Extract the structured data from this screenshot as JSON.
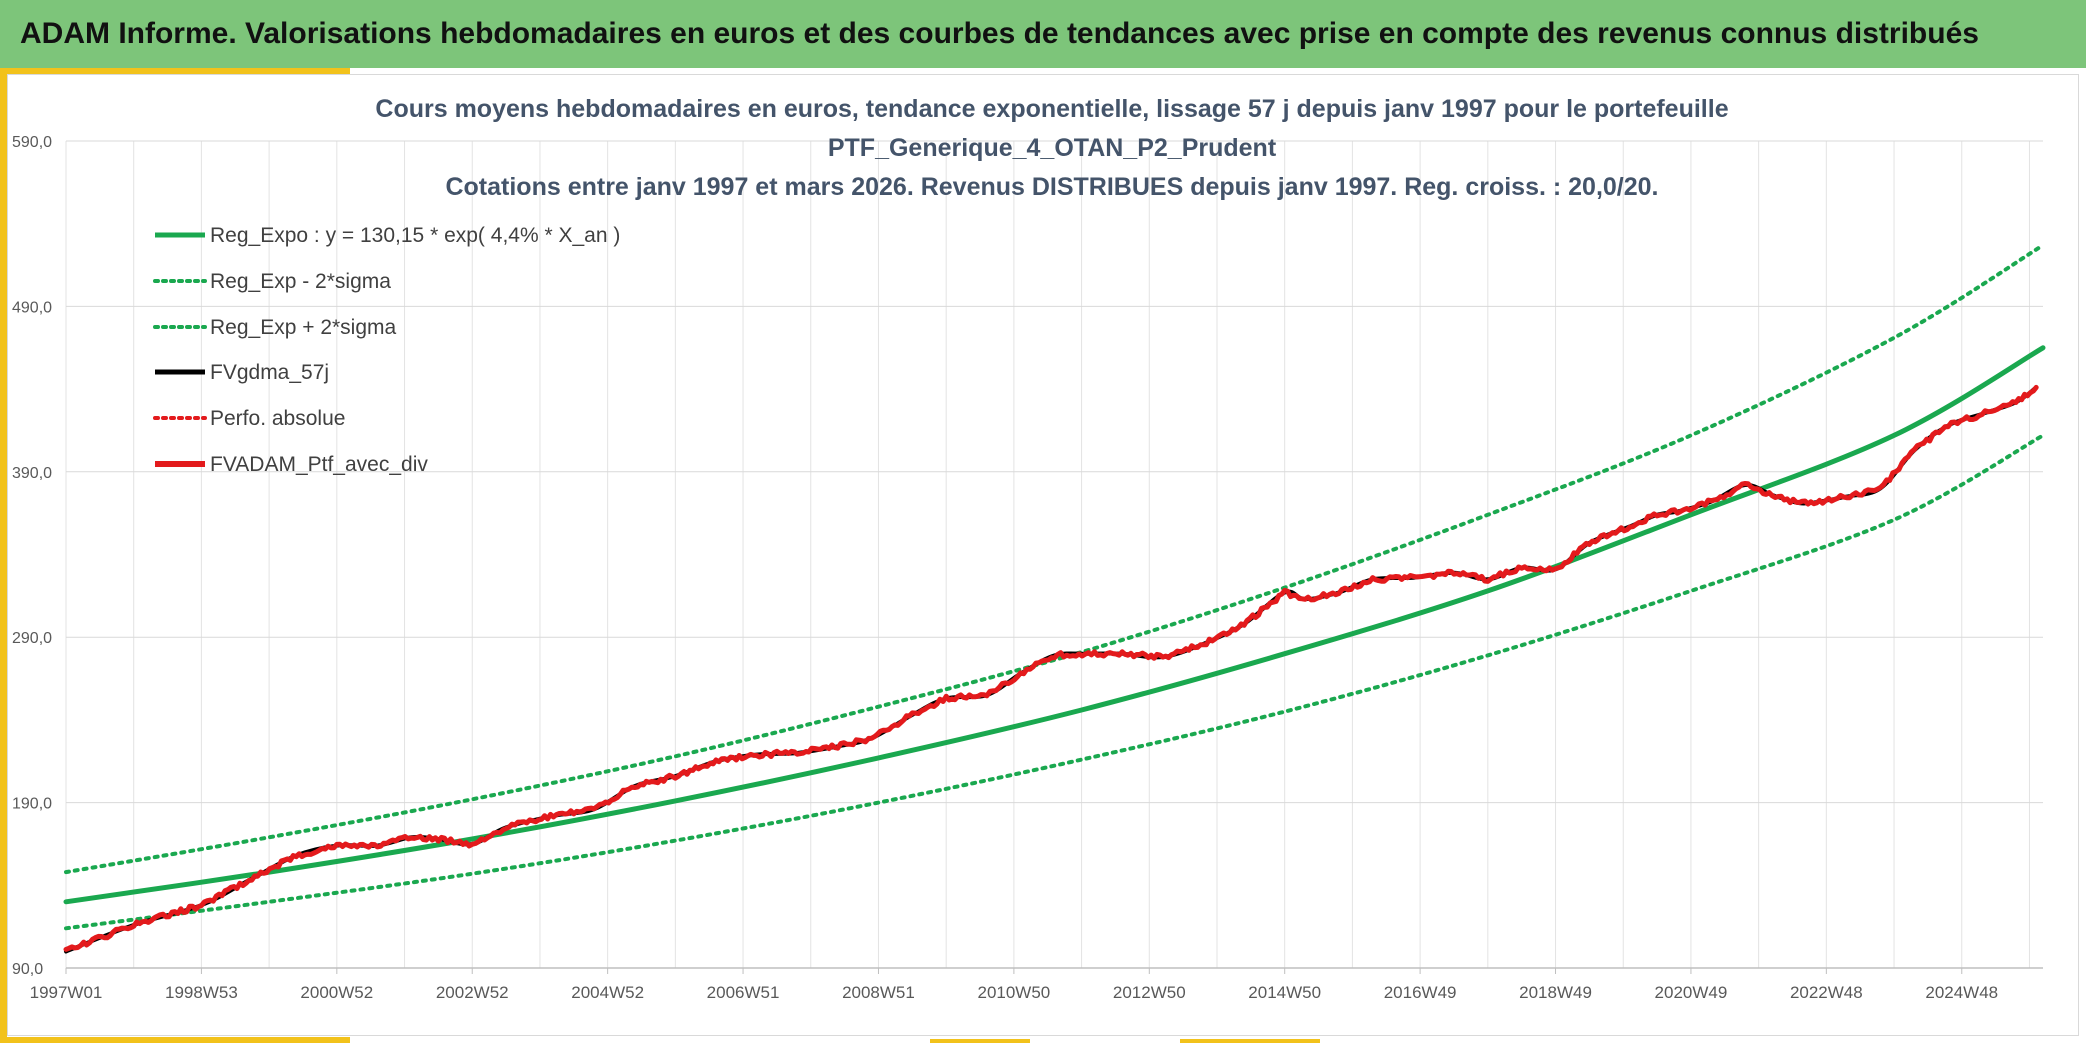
{
  "header": {
    "title": "ADAM Informe. Valorisations hebdomadaires en euros et des courbes de tendances avec prise en compte des revenus connus distribués"
  },
  "colors": {
    "banner": "#7dc57a",
    "accent": "#f2c21b",
    "green": "#1aa84f",
    "black": "#000000",
    "red": "#e31a1c"
  },
  "chart_data": {
    "type": "line",
    "title_lines": [
      "Cours moyens hebdomadaires en euros, tendance exponentielle, lissage 57 j depuis janv 1997 pour le portefeuille",
      "PTF_Generique_4_OTAN_P2_Prudent",
      "Cotations entre janv 1997 et mars 2026. Revenus DISTRIBUES depuis janv 1997. Reg. croiss. : 20,0/20."
    ],
    "xlabel": "",
    "ylabel": "",
    "ylim": [
      90,
      590
    ],
    "xlim": [
      1997.0,
      2026.2
    ],
    "yticks": [
      "590,0",
      "490,0",
      "390,0",
      "290,0",
      "190,0",
      "90,0"
    ],
    "xticks": [
      {
        "label": "1997W01",
        "x": 1997.0
      },
      {
        "label": "1998W53",
        "x": 1999.0
      },
      {
        "label": "2000W52",
        "x": 2001.0
      },
      {
        "label": "2002W52",
        "x": 2003.0
      },
      {
        "label": "2004W52",
        "x": 2005.0
      },
      {
        "label": "2006W51",
        "x": 2007.0
      },
      {
        "label": "2008W51",
        "x": 2009.0
      },
      {
        "label": "2010W50",
        "x": 2011.0
      },
      {
        "label": "2012W50",
        "x": 2013.0
      },
      {
        "label": "2014W50",
        "x": 2015.0
      },
      {
        "label": "2016W49",
        "x": 2017.0
      },
      {
        "label": "2018W49",
        "x": 2019.0
      },
      {
        "label": "2020W49",
        "x": 2021.0
      },
      {
        "label": "2022W48",
        "x": 2023.0
      },
      {
        "label": "2024W48",
        "x": 2025.0
      }
    ],
    "grid": true,
    "legend_position": "top-left",
    "series": [
      {
        "name": "Reg_Expo : y = 130,15 * exp( 4,4% *  X_an )",
        "style": "solid-green",
        "x": [
          1997,
          2000,
          2003,
          2006,
          2009,
          2012,
          2015,
          2018,
          2021,
          2024,
          2026.2
        ],
        "y": [
          130,
          148,
          168,
          191,
          217,
          246,
          280,
          318,
          364,
          412,
          465
        ]
      },
      {
        "name": "Reg_Exp - 2*sigma",
        "style": "dotted-green",
        "x": [
          1997,
          2000,
          2003,
          2006,
          2009,
          2012,
          2015,
          2018,
          2021,
          2024,
          2026.2
        ],
        "y": [
          114,
          130,
          147,
          167,
          190,
          216,
          245,
          279,
          318,
          361,
          412
        ]
      },
      {
        "name": "Reg_Exp + 2*sigma",
        "style": "dotted-green",
        "x": [
          1997,
          2000,
          2003,
          2006,
          2009,
          2012,
          2015,
          2018,
          2021,
          2024,
          2026.2
        ],
        "y": [
          148,
          169,
          192,
          218,
          248,
          281,
          320,
          364,
          412,
          471,
          527
        ]
      },
      {
        "name": "FVgdma_57j",
        "style": "solid-black",
        "x": [
          1997.0,
          1998.0,
          1999.0,
          1999.7,
          2000.4,
          2001.0,
          2001.6,
          2002.1,
          2002.5,
          2003.0,
          2003.5,
          2004.2,
          2004.8,
          2005.4,
          2006.0,
          2006.6,
          2007.2,
          2007.8,
          2008.4,
          2008.9,
          2009.5,
          2010.0,
          2010.6,
          2011.1,
          2011.6,
          2012.1,
          2012.6,
          2013.2,
          2013.8,
          2014.4,
          2015.0,
          2015.3,
          2015.8,
          2016.3,
          2016.9,
          2017.5,
          2018.0,
          2018.5,
          2019.0,
          2019.5,
          2020.1,
          2020.5,
          2020.8,
          2021.3,
          2021.8,
          2022.2,
          2022.6,
          2022.9,
          2023.3,
          2023.8,
          2024.3,
          2024.8,
          2025.3,
          2025.8,
          2026.1
        ],
        "y": [
          100,
          116,
          128,
          143,
          158,
          164,
          164,
          169,
          168,
          165,
          175,
          182,
          186,
          200,
          206,
          215,
          219,
          220,
          224,
          229,
          243,
          253,
          255,
          268,
          279,
          280,
          280,
          278,
          286,
          298,
          317,
          313,
          317,
          325,
          326,
          329,
          325,
          332,
          331,
          347,
          357,
          364,
          366,
          372,
          382,
          376,
          371,
          372,
          375,
          380,
          403,
          418,
          425,
          432,
          441
        ]
      },
      {
        "name": "Perfo. absolue",
        "style": "dotted-red",
        "x": [
          1997.0,
          1998.0,
          1999.0,
          1999.7,
          2000.4,
          2001.0,
          2001.6,
          2002.1,
          2002.5,
          2003.0,
          2003.5,
          2004.2,
          2004.8,
          2005.4,
          2006.0,
          2006.6,
          2007.2,
          2007.8,
          2008.4,
          2008.9,
          2009.5,
          2010.0,
          2010.6,
          2011.1,
          2011.6,
          2012.1,
          2012.6,
          2013.2,
          2013.8,
          2014.4,
          2015.0,
          2015.3,
          2015.8,
          2016.3,
          2016.9,
          2017.5,
          2018.0,
          2018.5,
          2019.0,
          2019.5,
          2020.1,
          2020.5,
          2020.8,
          2021.3,
          2021.8,
          2022.2,
          2022.6,
          2022.9,
          2023.3,
          2023.8,
          2024.3,
          2024.8,
          2025.3,
          2025.8,
          2026.1
        ],
        "y": [
          100,
          116,
          128,
          143,
          158,
          164,
          164,
          169,
          168,
          165,
          175,
          182,
          186,
          200,
          206,
          215,
          219,
          220,
          224,
          229,
          243,
          253,
          255,
          268,
          279,
          280,
          280,
          278,
          286,
          298,
          317,
          313,
          317,
          325,
          326,
          329,
          325,
          332,
          331,
          347,
          357,
          364,
          366,
          372,
          382,
          376,
          371,
          372,
          375,
          380,
          403,
          418,
          425,
          432,
          441
        ]
      },
      {
        "name": "FVADAM_Ptf_avec_div",
        "style": "solid-red",
        "x": [
          1997.0,
          1998.0,
          1999.0,
          1999.7,
          2000.4,
          2001.0,
          2001.6,
          2002.1,
          2002.5,
          2003.0,
          2003.5,
          2004.2,
          2004.8,
          2005.4,
          2006.0,
          2006.6,
          2007.2,
          2007.8,
          2008.4,
          2008.9,
          2009.5,
          2010.0,
          2010.6,
          2011.1,
          2011.6,
          2012.1,
          2012.6,
          2013.2,
          2013.8,
          2014.4,
          2015.0,
          2015.3,
          2015.8,
          2016.3,
          2016.9,
          2017.5,
          2018.0,
          2018.5,
          2019.0,
          2019.5,
          2020.1,
          2020.5,
          2020.8,
          2021.3,
          2021.8,
          2022.2,
          2022.6,
          2022.9,
          2023.3,
          2023.8,
          2024.3,
          2024.8,
          2025.3,
          2025.8,
          2026.1
        ],
        "y": [
          100,
          116,
          128,
          143,
          158,
          164,
          164,
          169,
          168,
          165,
          175,
          182,
          186,
          200,
          206,
          215,
          219,
          220,
          224,
          229,
          243,
          253,
          255,
          268,
          279,
          280,
          280,
          278,
          286,
          298,
          317,
          313,
          317,
          325,
          326,
          329,
          325,
          332,
          331,
          347,
          357,
          364,
          366,
          372,
          382,
          376,
          371,
          372,
          375,
          380,
          403,
          418,
          425,
          432,
          441
        ]
      }
    ]
  }
}
